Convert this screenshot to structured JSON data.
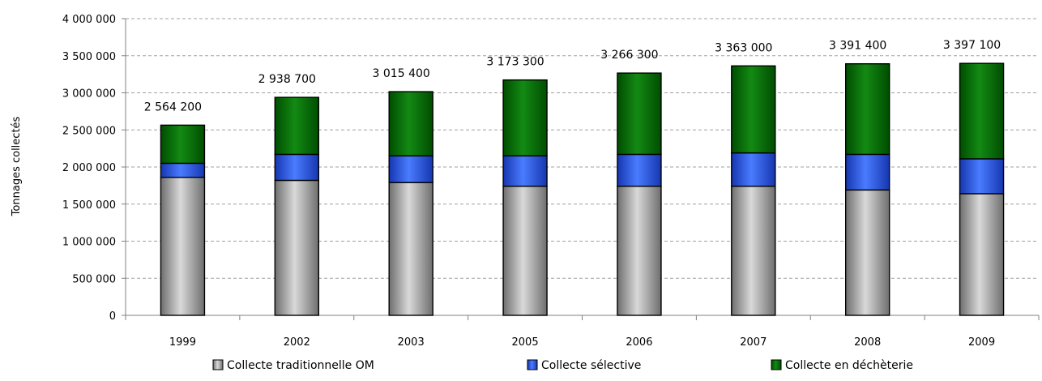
{
  "chart_data": {
    "type": "bar",
    "stacked": true,
    "categories": [
      "1999",
      "2002",
      "2003",
      "2005",
      "2006",
      "2007",
      "2008",
      "2009"
    ],
    "series": [
      {
        "name": "Collecte traditionnelle OM",
        "color": "#a6a6a6",
        "values": [
          1860000,
          1820000,
          1790000,
          1740000,
          1740000,
          1740000,
          1690000,
          1640000
        ]
      },
      {
        "name": "Collecte sélective",
        "color": "#1f4fe0",
        "values": [
          190000,
          350000,
          360000,
          410000,
          430000,
          450000,
          480000,
          470000
        ]
      },
      {
        "name": "Collecte en déchèterie",
        "color": "#007000",
        "values": [
          514200,
          768700,
          865400,
          1023300,
          1096300,
          1173000,
          1221400,
          1287100
        ]
      }
    ],
    "totals": [
      2564200,
      2938700,
      3015400,
      3173300,
      3266300,
      3363000,
      3391400,
      3397100
    ],
    "total_labels": [
      "2 564 200",
      "2 938 700",
      "3 015 400",
      "3 173 300",
      "3 266 300",
      "3 363 000",
      "3 391 400",
      "3 397 100"
    ],
    "ylabel": "Tonnages collectés",
    "xlabel": "",
    "title": "",
    "ylim": [
      0,
      4000000
    ],
    "yticks": [
      0,
      500000,
      1000000,
      1500000,
      2000000,
      2500000,
      3000000,
      3500000,
      4000000
    ],
    "ytick_labels": [
      "0",
      "500 000",
      "1 000 000",
      "1 500 000",
      "2 000 000",
      "2 500 000",
      "3 000 000",
      "3 500 000",
      "4 000 000"
    ],
    "grid": "horizontal-dashed",
    "legend_position": "bottom"
  }
}
